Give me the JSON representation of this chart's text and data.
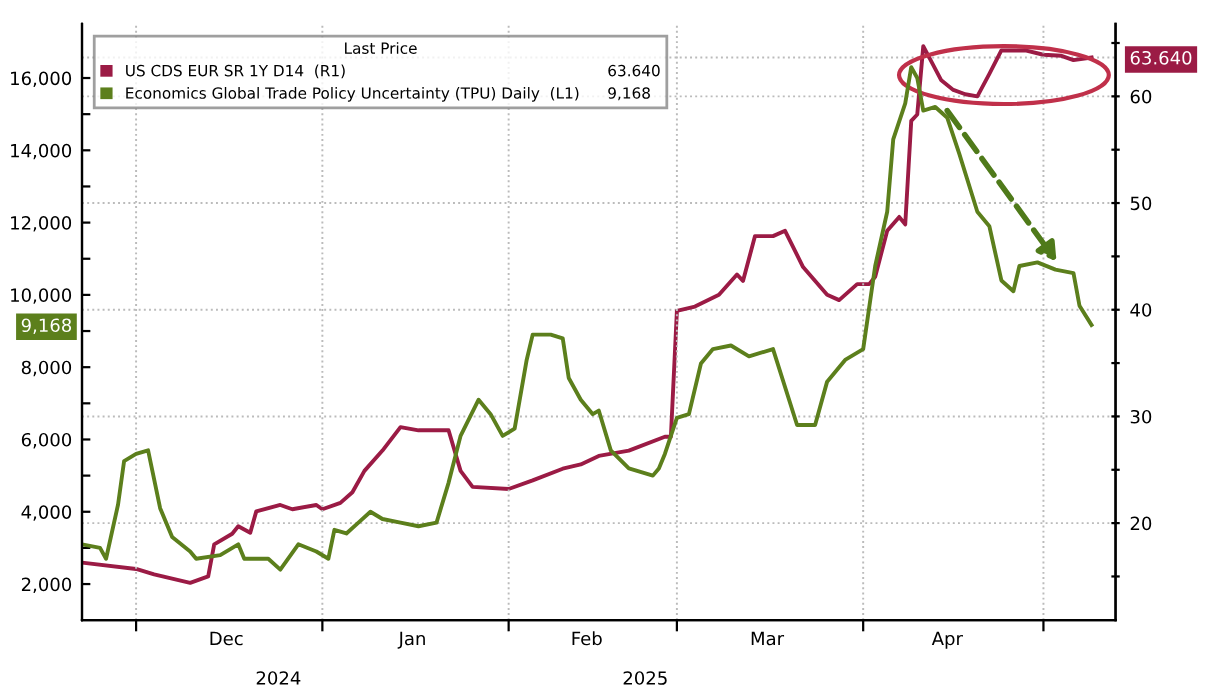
{
  "chart_data": {
    "type": "line",
    "legend_title": "Last Price",
    "legend": "top left",
    "grid": true,
    "marker": "none",
    "line_style": "solid",
    "xlim": [
      "2024-11-22",
      "2025-05-13"
    ],
    "xticks": [
      {
        "value": "2024-12-01",
        "label": null
      },
      {
        "value": "2024-12-16",
        "label": "Dec"
      },
      {
        "value": "2025-01-01",
        "label": null
      },
      {
        "value": "2025-01-16",
        "label": "Jan"
      },
      {
        "value": "2025-02-01",
        "label": null
      },
      {
        "value": "2025-02-14",
        "label": "Feb"
      },
      {
        "value": "2025-03-01",
        "label": null
      },
      {
        "value": "2025-03-16",
        "label": "Mar"
      },
      {
        "value": "2025-04-01",
        "label": null
      },
      {
        "value": "2025-04-15",
        "label": "Apr"
      },
      {
        "value": "2025-05-01",
        "label": null
      }
    ],
    "ylim": [
      1000,
      17500
    ],
    "yticks": [
      {
        "value": 2000,
        "label": "2,000"
      },
      {
        "value": 3000,
        "label": null
      },
      {
        "value": 4000,
        "label": "4,000"
      },
      {
        "value": 5000,
        "label": null
      },
      {
        "value": 6000,
        "label": "6,000"
      },
      {
        "value": 7000,
        "label": null
      },
      {
        "value": 8000,
        "label": "8,000"
      },
      {
        "value": 9000,
        "label": null
      },
      {
        "value": 10000,
        "label": "10,000"
      },
      {
        "value": 11000,
        "label": null
      },
      {
        "value": 12000,
        "label": "12,000"
      },
      {
        "value": 13000,
        "label": null
      },
      {
        "value": 14000,
        "label": "14,000"
      },
      {
        "value": 15000,
        "label": null
      },
      {
        "value": 16000,
        "label": "16,000"
      },
      {
        "value": 9168,
        "label": "9,168"
      }
    ],
    "y2lim": [
      10.9,
      66.8
    ],
    "y2ticks": [
      {
        "value": 15,
        "label": null
      },
      {
        "value": 20,
        "label": "20"
      },
      {
        "value": 25,
        "label": null
      },
      {
        "value": 30,
        "label": "30"
      },
      {
        "value": 35,
        "label": null
      },
      {
        "value": 40,
        "label": "40"
      },
      {
        "value": 45,
        "label": null
      },
      {
        "value": 50,
        "label": "50"
      },
      {
        "value": 55,
        "label": null
      },
      {
        "value": 60,
        "label": "60"
      },
      {
        "value": 65,
        "label": null
      },
      {
        "value": 63.64,
        "label": "63.640"
      }
    ],
    "annotations": [
      "2024",
      "2025"
    ],
    "series": [
      {
        "name": "US CDS EUR SR 1Y D14  (R1)",
        "color": "#9b1b45",
        "axis": "y2",
        "x": [
          "2024-11-22",
          "2024-12-01",
          "2024-12-04",
          "2024-12-10",
          "2024-12-13",
          "2024-12-14",
          "2024-12-17",
          "2024-12-18",
          "2024-12-20",
          "2024-12-21",
          "2024-12-25",
          "2024-12-27",
          "2024-12-31",
          "2025-01-01",
          "2025-01-04",
          "2025-01-06",
          "2025-01-08",
          "2025-01-11",
          "2025-01-14",
          "2025-01-17",
          "2025-01-22",
          "2025-01-24",
          "2025-01-26",
          "2025-02-01",
          "2025-02-05",
          "2025-02-10",
          "2025-02-13",
          "2025-02-16",
          "2025-02-21",
          "2025-02-27",
          "2025-02-28",
          "2025-03-01",
          "2025-03-04",
          "2025-03-08",
          "2025-03-11",
          "2025-03-12",
          "2025-03-14",
          "2025-03-17",
          "2025-03-19",
          "2025-03-22",
          "2025-03-26",
          "2025-03-28",
          "2025-03-31",
          "2025-04-02",
          "2025-04-03",
          "2025-04-05",
          "2025-04-07",
          "2025-04-08",
          "2025-04-09",
          "2025-04-10",
          "2025-04-11",
          "2025-04-14",
          "2025-04-16",
          "2025-04-18",
          "2025-04-20",
          "2025-04-22",
          "2025-04-24",
          "2025-04-28",
          "2025-05-01",
          "2025-05-04",
          "2025-05-06",
          "2025-05-09"
        ],
        "values": [
          16.3,
          15.7,
          15.2,
          14.4,
          15.0,
          18.0,
          19.0,
          19.7,
          19.1,
          21.1,
          21.7,
          21.3,
          21.7,
          21.3,
          21.9,
          22.9,
          24.9,
          26.8,
          29.0,
          28.7,
          28.7,
          24.9,
          23.4,
          23.2,
          24.0,
          25.1,
          25.5,
          26.3,
          26.8,
          28.1,
          28.1,
          39.9,
          40.3,
          41.4,
          43.3,
          42.7,
          46.9,
          46.9,
          47.4,
          44.0,
          41.4,
          40.9,
          42.4,
          42.4,
          43.1,
          47.4,
          48.7,
          48.0,
          57.7,
          58.3,
          64.7,
          61.5,
          60.6,
          60.2,
          60.0,
          62.1,
          64.3,
          64.3,
          63.9,
          63.8,
          63.4,
          63.64
        ]
      },
      {
        "name": "Economics Global Trade Policy Uncertainty (TPU) Daily  (L1)",
        "color": "#5c7f1c",
        "x": [
          "2024-11-22",
          "2024-11-25",
          "2024-11-26",
          "2024-11-28",
          "2024-11-29",
          "2024-12-01",
          "2024-12-03",
          "2024-12-05",
          "2024-12-07",
          "2024-12-10",
          "2024-12-11",
          "2024-12-15",
          "2024-12-18",
          "2024-12-19",
          "2024-12-23",
          "2024-12-25",
          "2024-12-28",
          "2024-12-31",
          "2025-01-02",
          "2025-01-03",
          "2025-01-05",
          "2025-01-07",
          "2025-01-09",
          "2025-01-11",
          "2025-01-14",
          "2025-01-17",
          "2025-01-20",
          "2025-01-22",
          "2025-01-24",
          "2025-01-27",
          "2025-01-29",
          "2025-01-31",
          "2025-02-02",
          "2025-02-04",
          "2025-02-05",
          "2025-02-08",
          "2025-02-10",
          "2025-02-11",
          "2025-02-13",
          "2025-02-15",
          "2025-02-16",
          "2025-02-18",
          "2025-02-21",
          "2025-02-25",
          "2025-02-26",
          "2025-02-27",
          "2025-03-01",
          "2025-03-03",
          "2025-03-05",
          "2025-03-07",
          "2025-03-10",
          "2025-03-13",
          "2025-03-17",
          "2025-03-21",
          "2025-03-24",
          "2025-03-26",
          "2025-03-29",
          "2025-04-01",
          "2025-04-03",
          "2025-04-05",
          "2025-04-06",
          "2025-04-08",
          "2025-04-09",
          "2025-04-10",
          "2025-04-11",
          "2025-04-13",
          "2025-04-15",
          "2025-04-17",
          "2025-04-20",
          "2025-04-22",
          "2025-04-24",
          "2025-04-26",
          "2025-04-27",
          "2025-04-30",
          "2025-05-03",
          "2025-05-06",
          "2025-05-07",
          "2025-05-09"
        ],
        "values": [
          3100,
          3000,
          2700,
          4200,
          5400,
          5600,
          5700,
          4100,
          3300,
          2900,
          2700,
          2800,
          3100,
          2700,
          2700,
          2400,
          3100,
          2900,
          2700,
          3500,
          3400,
          3700,
          4000,
          3800,
          3700,
          3600,
          3700,
          4800,
          6100,
          7100,
          6700,
          6100,
          6300,
          8200,
          8900,
          8900,
          8800,
          7700,
          7100,
          6700,
          6800,
          5700,
          5200,
          5000,
          5200,
          5600,
          6600,
          6700,
          8100,
          8500,
          8600,
          8300,
          8500,
          6400,
          6400,
          7600,
          8200,
          8500,
          10800,
          12300,
          14300,
          15300,
          16300,
          16000,
          15100,
          15200,
          14900,
          13900,
          12300,
          11900,
          10400,
          10100,
          10800,
          10900,
          10700,
          10600,
          9700,
          9168
        ]
      }
    ]
  }
}
